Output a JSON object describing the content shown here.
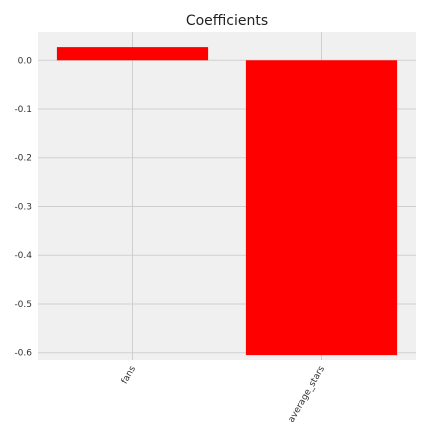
{
  "chart_data": {
    "type": "bar",
    "title": "Coefficients",
    "categories": [
      "fans",
      "average_stars"
    ],
    "values": [
      0.027,
      -0.605
    ],
    "xlabel": "",
    "ylabel": "",
    "ylim": [
      -0.615,
      0.058
    ],
    "yticks": [
      0.0,
      -0.1,
      -0.2,
      -0.3,
      -0.4,
      -0.5,
      -0.6
    ],
    "ytick_labels": [
      "0.0",
      "-0.1",
      "-0.2",
      "-0.3",
      "-0.4",
      "-0.5",
      "-0.6"
    ],
    "grid": true,
    "bar_color": "#ff0000",
    "plot_background": "#f0f0f0",
    "grid_color": "#cfcfcf"
  }
}
